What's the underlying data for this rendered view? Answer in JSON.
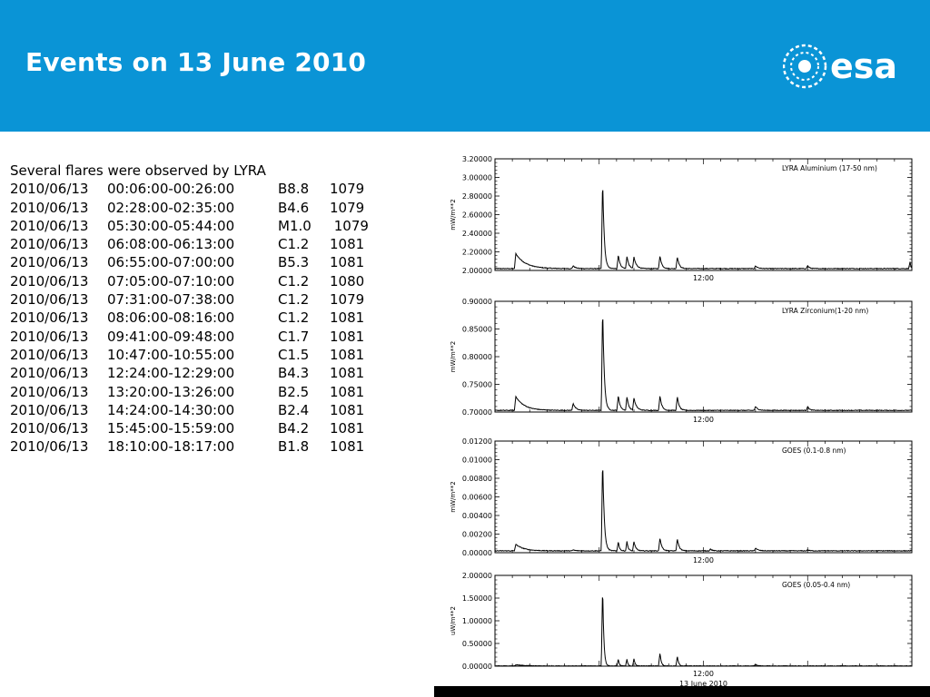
{
  "header": {
    "title": "Events on 13 June 2010",
    "logo_text": "esa",
    "color": "#0a94d6"
  },
  "events": {
    "intro": "Several flares were observed by LYRA",
    "rows": [
      {
        "date": "2010/06/13",
        "time": "00:06:00-00:26:00",
        "cls": "B8.8",
        "num": "1079"
      },
      {
        "date": "2010/06/13",
        "time": "02:28:00-02:35:00",
        "cls": "B4.6",
        "num": "1079"
      },
      {
        "date": "2010/06/13",
        "time": "05:30:00-05:44:00",
        "cls": "M1.0",
        "num": " 1079"
      },
      {
        "date": "2010/06/13",
        "time": "06:08:00-06:13:00",
        "cls": "C1.2",
        "num": "1081"
      },
      {
        "date": "2010/06/13",
        "time": "06:55:00-07:00:00",
        "cls": "B5.3",
        "num": "1081"
      },
      {
        "date": "2010/06/13",
        "time": "07:05:00-07:10:00",
        "cls": "C1.2",
        "num": "1080"
      },
      {
        "date": "2010/06/13",
        "time": "07:31:00-07:38:00",
        "cls": "C1.2",
        "num": "1079"
      },
      {
        "date": "2010/06/13",
        "time": "08:06:00-08:16:00",
        "cls": "C1.2",
        "num": "1081"
      },
      {
        "date": "2010/06/13",
        "time": "09:41:00-09:48:00",
        "cls": "C1.7",
        "num": "1081"
      },
      {
        "date": "2010/06/13",
        "time": "10:47:00-10:55:00",
        "cls": "C1.5",
        "num": "1081"
      },
      {
        "date": "2010/06/13",
        "time": "12:24:00-12:29:00",
        "cls": "B4.3",
        "num": "1081"
      },
      {
        "date": "2010/06/13",
        "time": "13:20:00-13:26:00",
        "cls": "B2.5",
        "num": "1081"
      },
      {
        "date": "2010/06/13",
        "time": "14:24:00-14:30:00",
        "cls": "B2.4",
        "num": "1081"
      },
      {
        "date": "2010/06/13",
        "time": "15:45:00-15:59:00",
        "cls": "B4.2",
        "num": "1081"
      },
      {
        "date": "2010/06/13",
        "time": "18:10:00-18:17:00",
        "cls": "B1.8",
        "num": "1081"
      }
    ]
  },
  "chart_data": [
    {
      "type": "line",
      "legend": "LYRA Aluminium (17-50 nm)",
      "ylabel": "mW/m**2",
      "xlabel": "",
      "xlim": [
        0,
        24
      ],
      "ylim": [
        2.0,
        3.2
      ],
      "ytick_labels": [
        "2.00000",
        "2.20000",
        "2.40000",
        "2.60000",
        "2.80000",
        "3.00000",
        "3.20000"
      ],
      "xtick_labels": [
        "12:00"
      ],
      "baseline": 2.02,
      "flares": [
        [
          1.2,
          2.18,
          1.6
        ],
        [
          4.5,
          2.05,
          0.4
        ],
        [
          6.2,
          3.0,
          0.25
        ],
        [
          7.1,
          2.17,
          0.3
        ],
        [
          7.6,
          2.15,
          0.3
        ],
        [
          8.0,
          2.14,
          0.4
        ],
        [
          9.5,
          2.16,
          0.3
        ],
        [
          10.5,
          2.15,
          0.3
        ],
        [
          15.0,
          2.05,
          0.4
        ],
        [
          18.0,
          2.05,
          0.3
        ],
        [
          23.9,
          2.1,
          0.1
        ]
      ]
    },
    {
      "type": "line",
      "legend": "LYRA Zirconium(1-20 nm)",
      "ylabel": "mW/m**2",
      "xlabel": "",
      "xlim": [
        0,
        24
      ],
      "ylim": [
        0.7,
        0.9
      ],
      "ytick_labels": [
        "0.70000",
        "0.75000",
        "0.80000",
        "0.85000",
        "0.90000"
      ],
      "xtick_labels": [
        "12:00"
      ],
      "baseline": 0.703,
      "flares": [
        [
          1.2,
          0.728,
          1.4
        ],
        [
          4.5,
          0.716,
          0.4
        ],
        [
          6.2,
          0.895,
          0.25
        ],
        [
          7.1,
          0.73,
          0.3
        ],
        [
          7.6,
          0.727,
          0.3
        ],
        [
          8.0,
          0.725,
          0.4
        ],
        [
          9.5,
          0.73,
          0.3
        ],
        [
          10.5,
          0.728,
          0.3
        ],
        [
          15.0,
          0.71,
          0.4
        ],
        [
          18.0,
          0.71,
          0.3
        ]
      ]
    },
    {
      "type": "line",
      "legend": "GOES (0.1-0.8 nm)",
      "ylabel": "mW/m**2",
      "xlabel": "",
      "xlim": [
        0,
        24
      ],
      "ylim": [
        0.0,
        0.012
      ],
      "ytick_labels": [
        "0.00000",
        "0.00200",
        "0.00400",
        "0.00600",
        "0.00800",
        "0.01000",
        "0.01200"
      ],
      "xtick_labels": [
        "12:00"
      ],
      "baseline": 0.0002,
      "flares": [
        [
          1.2,
          0.0009,
          1.3
        ],
        [
          4.5,
          0.0003,
          0.4
        ],
        [
          6.2,
          0.0103,
          0.25
        ],
        [
          7.1,
          0.0012,
          0.2
        ],
        [
          7.6,
          0.0012,
          0.2
        ],
        [
          8.0,
          0.0012,
          0.3
        ],
        [
          9.5,
          0.0016,
          0.3
        ],
        [
          10.5,
          0.0015,
          0.3
        ],
        [
          12.4,
          0.0004,
          0.3
        ],
        [
          15.0,
          0.0005,
          0.4
        ],
        [
          18.0,
          0.0003,
          0.3
        ]
      ]
    },
    {
      "type": "line",
      "legend": "GOES (0.05-0.4 nm)",
      "ylabel": "uW/m**2",
      "xlabel": "13 June 2010",
      "xlim": [
        0,
        24
      ],
      "ylim": [
        0.0,
        2.0
      ],
      "ytick_labels": [
        "0.00000",
        "0.50000",
        "1.00000",
        "1.50000",
        "2.00000"
      ],
      "xtick_labels": [
        "12:00"
      ],
      "baseline": 0.005,
      "flares": [
        [
          1.2,
          0.03,
          1.3
        ],
        [
          6.2,
          1.82,
          0.18
        ],
        [
          7.1,
          0.16,
          0.15
        ],
        [
          7.6,
          0.15,
          0.15
        ],
        [
          8.0,
          0.16,
          0.2
        ],
        [
          9.5,
          0.3,
          0.2
        ],
        [
          10.5,
          0.22,
          0.2
        ],
        [
          15.0,
          0.04,
          0.3
        ]
      ]
    }
  ]
}
